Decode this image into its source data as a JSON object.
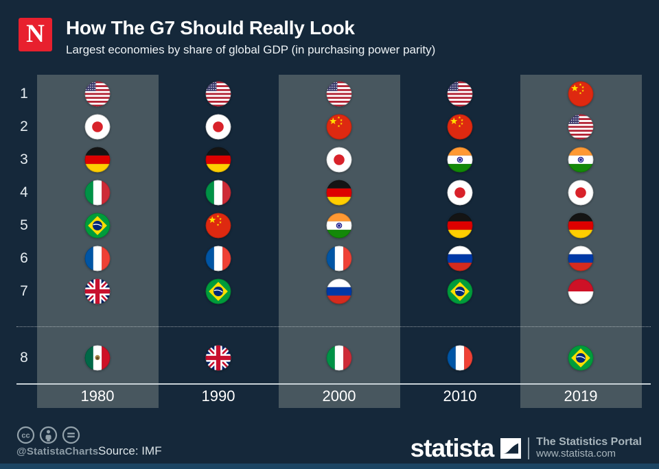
{
  "header": {
    "logo_letter": "N",
    "title": "How The G7 Should Really Look",
    "subtitle": "Largest economies by share of global GDP (in purchasing power parity)"
  },
  "chart_data": {
    "type": "table",
    "title": "How The G7 Should Really Look",
    "subtitle": "Largest economies by share of global GDP (in purchasing power parity)",
    "description": "Ranking of largest economies (rank 1-8) per year, shown as circular country flags; ranks 1-7 above a dotted separator, rank 8 below it",
    "rank_labels": [
      "1",
      "2",
      "3",
      "4",
      "5",
      "6",
      "7",
      "8"
    ],
    "columns": [
      {
        "year": "1980",
        "highlighted": true,
        "ranking": [
          "United States",
          "Japan",
          "Germany",
          "Italy",
          "Brazil",
          "France",
          "United Kingdom",
          "Mexico"
        ]
      },
      {
        "year": "1990",
        "highlighted": false,
        "ranking": [
          "United States",
          "Japan",
          "Germany",
          "Italy",
          "China",
          "France",
          "Brazil",
          "United Kingdom"
        ]
      },
      {
        "year": "2000",
        "highlighted": true,
        "ranking": [
          "United States",
          "China",
          "Japan",
          "Germany",
          "India",
          "France",
          "Russia",
          "Italy"
        ]
      },
      {
        "year": "2010",
        "highlighted": false,
        "ranking": [
          "United States",
          "China",
          "India",
          "Japan",
          "Germany",
          "Russia",
          "Brazil",
          "France"
        ]
      },
      {
        "year": "2019",
        "highlighted": true,
        "ranking": [
          "China",
          "United States",
          "India",
          "Japan",
          "Germany",
          "Russia",
          "Indonesia",
          "Brazil"
        ]
      }
    ]
  },
  "footer": {
    "cc_icons": [
      "cc-icon",
      "attribution-icon",
      "no-derivatives-icon"
    ],
    "handle": "@StatistaCharts",
    "source": "Source: IMF",
    "brand": "statista",
    "portal": "The Statistics Portal",
    "url": "www.statista.com"
  },
  "colors": {
    "background": "#15283a",
    "column_highlight": "#48575f",
    "newsweek_red": "#e8202e",
    "footer_gray": "#8d9ca6"
  }
}
